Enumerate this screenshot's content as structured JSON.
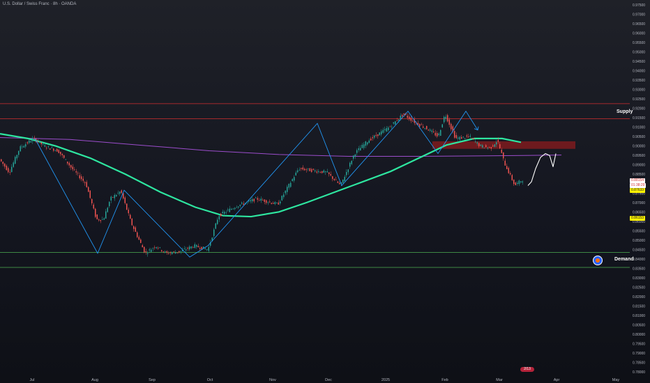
{
  "chart": {
    "title": "U.S. Dollar / Swiss Franc · 8h · OANDA",
    "price_axis": {
      "labels": [
        "0.97500",
        "0.97000",
        "0.96500",
        "0.96000",
        "0.95500",
        "0.95000",
        "0.94500",
        "0.94000",
        "0.93500",
        "0.93000",
        "0.92500",
        "0.92000",
        "0.91500",
        "0.91000",
        "0.90500",
        "0.90000",
        "0.89500",
        "0.89000",
        "0.88500",
        "0.88000",
        "0.87500",
        "0.87000",
        "0.86500",
        "0.86000",
        "0.85500",
        "0.85000",
        "0.84500",
        "0.84000",
        "0.83500",
        "0.83000",
        "0.82500",
        "0.82000",
        "0.81500",
        "0.81000",
        "0.80500",
        "0.80000",
        "0.79500",
        "0.79000",
        "0.78500",
        "0.78000"
      ],
      "range": [
        0.78,
        0.975
      ]
    },
    "time_axis": {
      "labels": [
        "Jul",
        "Aug",
        "Sep",
        "Oct",
        "Nov",
        "Dec",
        "2025",
        "Feb",
        "Mar",
        "Apr",
        "May"
      ]
    },
    "zones": {
      "supply": {
        "label": "Supply",
        "low": 0.9145,
        "high": 0.9225
      },
      "demand": {
        "label": "Demand",
        "low": 0.8355,
        "high": 0.8435
      }
    },
    "price_tags": [
      {
        "text": "0.88154",
        "bg": "#ffffff",
        "fg": "#d32f2f"
      },
      {
        "text": "01:38:29",
        "bg": "#ffffff",
        "fg": "#d32f2f"
      },
      {
        "text": "0.87633",
        "bg": "#fff200",
        "fg": "#131722"
      },
      {
        "text": "0.86153",
        "bg": "#fff200",
        "fg": "#131722"
      }
    ],
    "events_badge": "2/13",
    "colors": {
      "supply_line": "#d32f2f",
      "demand_line": "#4caf50",
      "ma_fast": "#2ee6a0",
      "ma_slow": "#9c4dcc",
      "zigzag": "#2196f3",
      "candle_up": "#26a69a",
      "candle_down": "#ef5350",
      "projection": "#ffffff",
      "order_block": "#b71c1c"
    }
  }
}
